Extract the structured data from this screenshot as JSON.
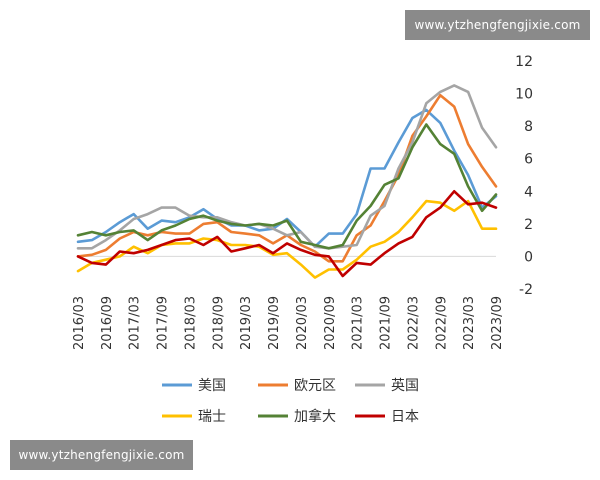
{
  "watermark_top": "www.ytzhengfengjixie.com",
  "watermark_bottom": "www.ytzhengfengjixie.com",
  "chart_data": {
    "type": "line",
    "title": "",
    "xlabel": "",
    "ylabel": "",
    "ylim": [
      -2,
      12
    ],
    "yticks": [
      -2,
      0,
      2,
      4,
      6,
      8,
      10,
      12
    ],
    "xlim": [
      "2016/03",
      "2023/09"
    ],
    "x_tick_labels": [
      "2016/03",
      "2016/09",
      "2017/03",
      "2017/09",
      "2018/03",
      "2018/09",
      "2019/03",
      "2019/09",
      "2020/03",
      "2020/09",
      "2021/03",
      "2021/09",
      "2022/03",
      "2022/09",
      "2023/03",
      "2023/09"
    ],
    "grid": false,
    "legend_position": "bottom",
    "x_step": "quarterly",
    "x": [
      "2016/03",
      "2016/06",
      "2016/09",
      "2016/12",
      "2017/03",
      "2017/06",
      "2017/09",
      "2017/12",
      "2018/03",
      "2018/06",
      "2018/09",
      "2018/12",
      "2019/03",
      "2019/06",
      "2019/09",
      "2019/12",
      "2020/03",
      "2020/06",
      "2020/09",
      "2020/12",
      "2021/03",
      "2021/06",
      "2021/09",
      "2021/12",
      "2022/03",
      "2022/06",
      "2022/09",
      "2022/12",
      "2023/03",
      "2023/06",
      "2023/09"
    ],
    "series": [
      {
        "name": "美国",
        "color": "#5b9bd5",
        "values": [
          0.9,
          1.0,
          1.5,
          2.1,
          2.6,
          1.7,
          2.2,
          2.1,
          2.4,
          2.9,
          2.3,
          1.9,
          1.9,
          1.6,
          1.7,
          2.3,
          1.5,
          0.6,
          1.4,
          1.4,
          2.6,
          5.4,
          5.4,
          7.0,
          8.5,
          9.0,
          8.2,
          6.5,
          5.0,
          3.0,
          3.7
        ]
      },
      {
        "name": "欧元区",
        "color": "#ed7d31",
        "values": [
          0.0,
          0.1,
          0.4,
          1.1,
          1.5,
          1.3,
          1.5,
          1.4,
          1.4,
          2.0,
          2.1,
          1.5,
          1.4,
          1.3,
          0.8,
          1.3,
          0.7,
          0.3,
          -0.3,
          -0.3,
          1.3,
          1.9,
          3.4,
          5.0,
          7.4,
          8.6,
          9.9,
          9.2,
          6.9,
          5.5,
          4.3
        ]
      },
      {
        "name": "英国",
        "color": "#a5a5a5",
        "values": [
          0.5,
          0.5,
          1.0,
          1.6,
          2.3,
          2.6,
          3.0,
          3.0,
          2.5,
          2.4,
          2.4,
          2.1,
          1.9,
          2.0,
          1.7,
          1.3,
          1.5,
          0.6,
          0.5,
          0.6,
          0.7,
          2.5,
          3.1,
          5.4,
          7.0,
          9.4,
          10.1,
          10.5,
          10.1,
          7.9,
          6.7
        ]
      },
      {
        "name": "瑞士",
        "color": "#ffc000",
        "values": [
          -0.9,
          -0.4,
          -0.2,
          0.0,
          0.6,
          0.2,
          0.7,
          0.8,
          0.8,
          1.1,
          1.0,
          0.7,
          0.7,
          0.6,
          0.1,
          0.2,
          -0.5,
          -1.3,
          -0.8,
          -0.8,
          -0.2,
          0.6,
          0.9,
          1.5,
          2.4,
          3.4,
          3.3,
          2.8,
          3.4,
          1.7,
          1.7
        ]
      },
      {
        "name": "加拿大",
        "color": "#548235",
        "values": [
          1.3,
          1.5,
          1.3,
          1.5,
          1.6,
          1.0,
          1.6,
          1.9,
          2.3,
          2.5,
          2.2,
          2.0,
          1.9,
          2.0,
          1.9,
          2.2,
          0.9,
          0.7,
          0.5,
          0.7,
          2.2,
          3.1,
          4.4,
          4.8,
          6.7,
          8.1,
          6.9,
          6.3,
          4.3,
          2.8,
          3.8
        ]
      },
      {
        "name": "日本",
        "color": "#c00000",
        "values": [
          0.0,
          -0.4,
          -0.5,
          0.3,
          0.2,
          0.4,
          0.7,
          1.0,
          1.1,
          0.7,
          1.2,
          0.3,
          0.5,
          0.7,
          0.2,
          0.8,
          0.4,
          0.1,
          0.0,
          -1.2,
          -0.4,
          -0.5,
          0.2,
          0.8,
          1.2,
          2.4,
          3.0,
          4.0,
          3.2,
          3.3,
          3.0
        ]
      }
    ]
  }
}
